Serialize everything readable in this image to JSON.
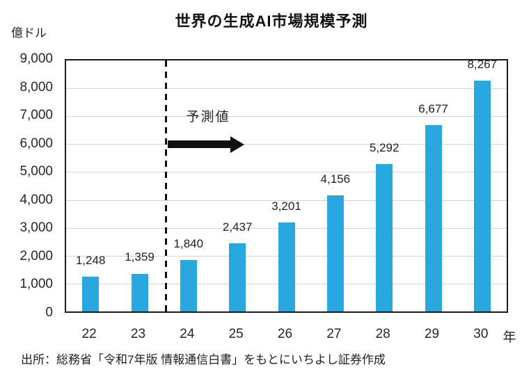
{
  "chart_data": {
    "type": "bar",
    "title": "世界の生成AI市場規模予測",
    "unit_label": "億ドル",
    "categories": [
      "22",
      "23",
      "24",
      "25",
      "26",
      "27",
      "28",
      "29",
      "30"
    ],
    "x_suffix": "年",
    "values": [
      1248,
      1359,
      1840,
      2437,
      3201,
      4156,
      5292,
      6677,
      8267
    ],
    "value_labels": [
      "1,248",
      "1,359",
      "1,840",
      "2,437",
      "3,201",
      "4,156",
      "5,292",
      "6,677",
      "8,267"
    ],
    "y_ticks": [
      "9,000",
      "8,000",
      "7,000",
      "6,000",
      "5,000",
      "4,000",
      "3,000",
      "2,000",
      "1,000",
      "0"
    ],
    "ylim": [
      0,
      9000
    ],
    "grid": true,
    "legend": false,
    "forecast_label": "予測値",
    "forecast_divider_after_category": "23",
    "bar_color": "#29a8e0",
    "frame_color": "#1a1a1a",
    "gridline_color": "#d2d2d2",
    "source": "出所：総務省「令和7年版 情報通信白書」をもとにいちよし証券作成"
  }
}
